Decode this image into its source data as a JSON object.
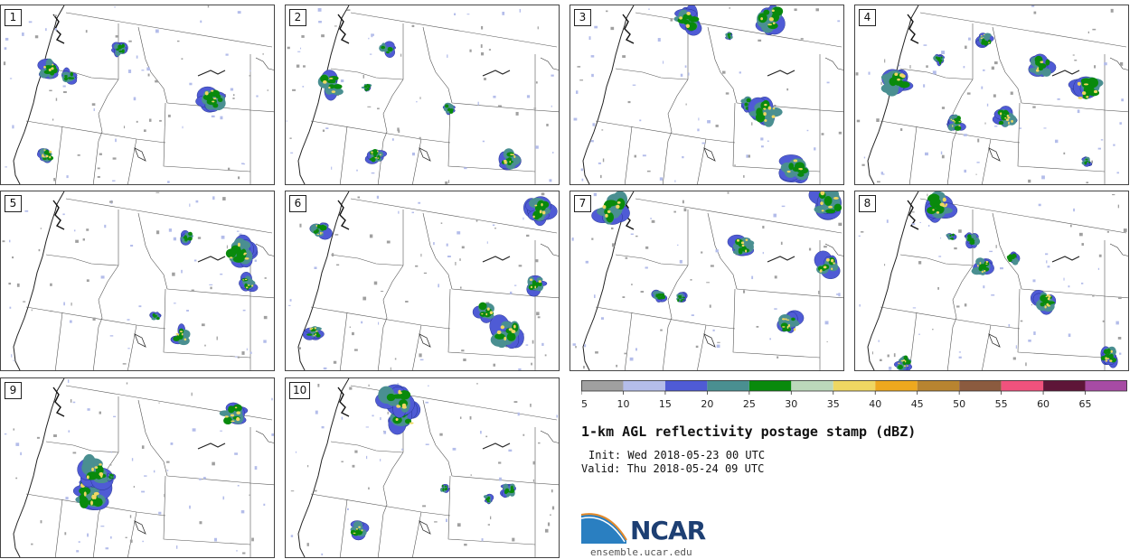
{
  "panels": [
    "1",
    "2",
    "3",
    "4",
    "5",
    "6",
    "7",
    "8",
    "9",
    "10"
  ],
  "colorbar": {
    "ticks": [
      "5",
      "10",
      "15",
      "20",
      "25",
      "30",
      "35",
      "40",
      "45",
      "50",
      "55",
      "60",
      "65"
    ],
    "colors": [
      "#a0a0a0",
      "#b4bdea",
      "#4f5bd5",
      "#4a8f91",
      "#098a0c",
      "#bcd8bb",
      "#efd762",
      "#eea81e",
      "#b88430",
      "#8b5b3f",
      "#f0527d",
      "#5e1538",
      "#a74ba4"
    ]
  },
  "title": "1-km AGL reflectivity postage stamp (dBZ)",
  "init": "Init: Wed 2018-05-23 00 UTC",
  "valid": "Valid: Thu 2018-05-24 09 UTC",
  "logo": {
    "text": "NCAR",
    "colors": [
      "#1d3f73",
      "#2a7fc1",
      "#e58a2a"
    ]
  },
  "site": "ensemble.ucar.edu"
}
